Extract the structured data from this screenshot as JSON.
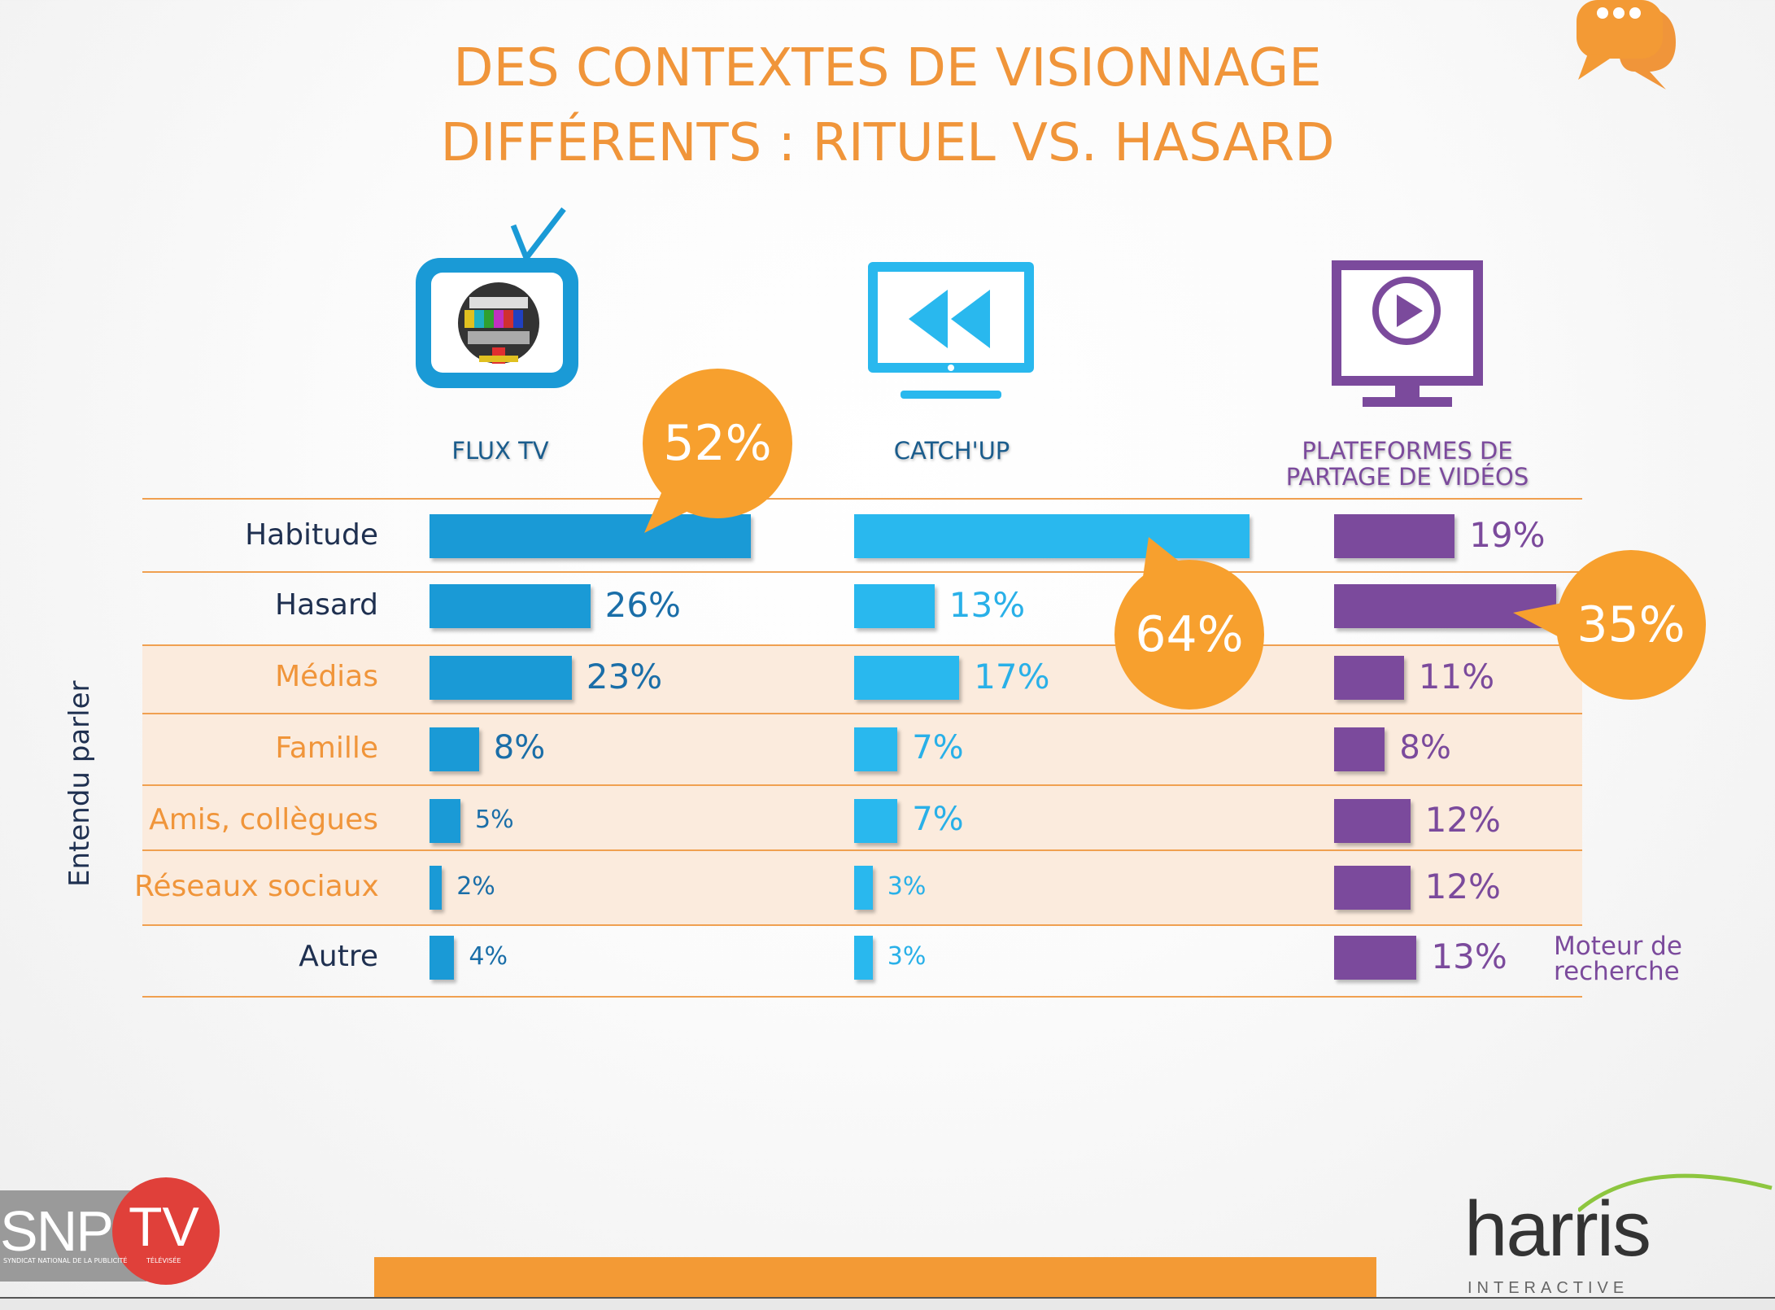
{
  "title": {
    "line1": "DES CONTEXTES DE VISIONNAGE",
    "line2": "DIFFÉRENTS : RITUEL VS. HASARD"
  },
  "colors": {
    "accent": "#F0953A",
    "flux": "#1A9AD6",
    "catchup": "#29B8EE",
    "plateformes": "#7B4A9C",
    "navy": "#1F3050",
    "band": "#FBEBDD"
  },
  "columns": {
    "flux": "FLUX TV",
    "catchup": "CATCH'UP",
    "plateformes_l1": "PLATEFORMES DE",
    "plateformes_l2": "PARTAGE DE VIDÉOS"
  },
  "y_axis_label": "Entendu parler",
  "side_note": {
    "l1": "Moteur de",
    "l2": "recherche"
  },
  "logos": {
    "snp": "SNP",
    "tv": "TV",
    "snp_sub": "SYNDICAT NATIONAL DE LA PUBLICITÉ",
    "tv_sub": "TÉLÉVISÉE",
    "harris": "harris",
    "harris_sub": "INTERACTIVE"
  },
  "chart_data": {
    "type": "bar",
    "categories": [
      "Habitude",
      "Hasard",
      "Médias",
      "Famille",
      "Amis, collègues",
      "Réseaux sociaux",
      "Autre"
    ],
    "series": [
      {
        "name": "FLUX TV",
        "values": [
          52,
          26,
          23,
          8,
          5,
          2,
          4
        ]
      },
      {
        "name": "CATCH'UP",
        "values": [
          64,
          13,
          17,
          7,
          7,
          3,
          3
        ]
      },
      {
        "name": "PLATEFORMES DE PARTAGE DE VIDÉOS",
        "values": [
          19,
          35,
          11,
          8,
          12,
          12,
          13
        ]
      }
    ],
    "labels": [
      [
        "52%",
        "26%",
        "23%",
        "8%",
        "5%",
        "2%",
        "4%"
      ],
      [
        "64%",
        "13%",
        "17%",
        "7%",
        "7%",
        "3%",
        "3%"
      ],
      [
        "19%",
        "35%",
        "11%",
        "8%",
        "12%",
        "12%",
        "13%"
      ]
    ],
    "highlighted": [
      "FLUX TV: Habitude",
      "CATCH'UP: Habitude",
      "PLATEFORMES DE PARTAGE DE VIDÉOS: Hasard"
    ],
    "y_axis_label": "Entendu parler"
  }
}
